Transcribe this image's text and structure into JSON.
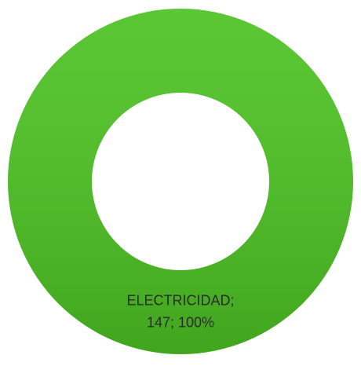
{
  "chart_data": {
    "type": "donut",
    "values": [
      147
    ],
    "value_labels": [
      [
        "ELECTRICIDAD;",
        "147; 100%"
      ]
    ],
    "colors": [
      "#4cc222"
    ]
  }
}
